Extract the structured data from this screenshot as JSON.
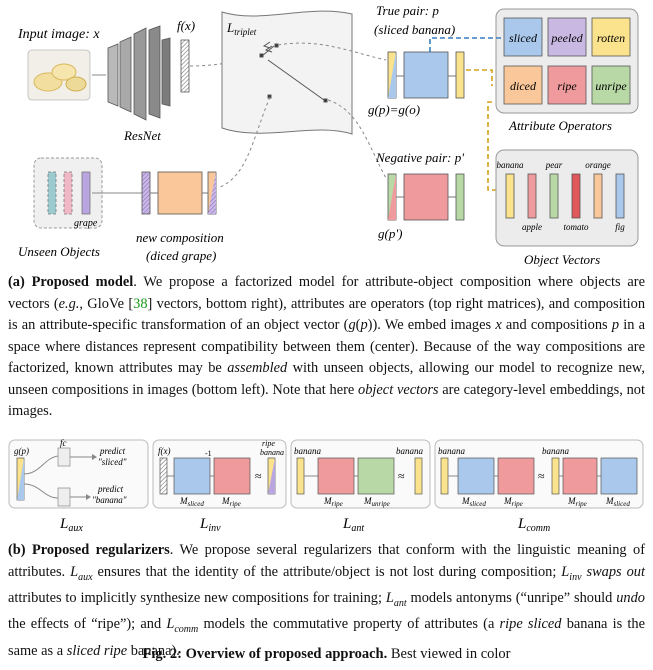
{
  "diagram": {
    "input_label": "Input image: x",
    "resnet_label": "ResNet",
    "fx_label": "f(x)",
    "triplet_label": "L",
    "triplet_sub": "triplet",
    "true_pair_label": "True pair: p",
    "true_pair_sub": "(sliced banana)",
    "gp_label": "g(p)=g(o)",
    "negative_pair_label": "Negative pair: p'",
    "gp_prime_label": "g(p')",
    "unseen_label": "Unseen Objects",
    "grape_label": "grape",
    "new_comp_label": "new composition",
    "new_comp_sub": "(diced grape)",
    "attribute_ops_label": "Attribute Operators",
    "object_vectors_label": "Object Vectors",
    "attributes": [
      {
        "name": "sliced",
        "color": "#a9c8ec"
      },
      {
        "name": "peeled",
        "color": "#c9b8e2"
      },
      {
        "name": "rotten",
        "color": "#fbe38d"
      },
      {
        "name": "diced",
        "color": "#f9c79a"
      },
      {
        "name": "ripe",
        "color": "#ef9a9c"
      },
      {
        "name": "unripe",
        "color": "#b8d9a6"
      }
    ],
    "objects_top": [
      "banana",
      "pear",
      "orange"
    ],
    "objects_bottom": [
      "apple",
      "tomato",
      "fig"
    ]
  },
  "caption_a": {
    "label": "(a) Proposed model",
    "text_html": ". We propose a factorized model for attribute-object composition where objects are vectors (<i>e.g.</i>, GloVe [<span style=\"color:#1a9a1a\">38</span>] vectors, bottom right), attributes are operators (top right matrices), and composition is an attribute-specific transformation of an object vector (<i>g</i>(<i>p</i>)). We embed images <i>x</i> and compositions <i>p</i> in a space where distances represent compatibility between them (center). Because of the way compositions are factorized, known attributes may be <i>assembled</i> with unseen objects, allowing our model to recognize new, unseen compositions in images (bottom left). Note that here <i>object vectors</i> are category-level embeddings, not images."
  },
  "regularizers": {
    "aux": {
      "gp": "g(p)",
      "fc": "fc",
      "predict1": "predict",
      "val1": "\"sliced\"",
      "predict2": "predict",
      "val2": "\"banana\"",
      "loss": "L",
      "sub": "aux"
    },
    "inv": {
      "fx": "f(x)",
      "minus": "-1",
      "top_right": "ripe",
      "top_right2": "banana",
      "m1": "M",
      "m1sub": "sliced",
      "m2": "M",
      "m2sub": "ripe",
      "loss": "L",
      "sub": "inv"
    },
    "ant": {
      "left": "banana",
      "right": "banana",
      "m1": "M",
      "m1sub": "ripe",
      "m2": "M",
      "m2sub": "unripe",
      "loss": "L",
      "sub": "ant"
    },
    "comm": {
      "left": "banana",
      "right": "banana",
      "m1": "M",
      "m1sub": "sliced",
      "m2": "M",
      "m2sub": "ripe",
      "m3": "M",
      "m3sub": "ripe",
      "m4": "M",
      "m4sub": "sliced",
      "loss": "L",
      "sub": "comm"
    }
  },
  "caption_b": {
    "label": "(b) Proposed regularizers",
    "text_html": ". We propose several regularizers that conform with the linguistic meaning of attributes. <i>L</i><sub style=\"font-size:10px\"><i>aux</i></sub> ensures that the identity of the attribute/object is not lost during composition; <i>L</i><sub style=\"font-size:10px\"><i>inv</i></sub> <i>swaps out</i> attributes to implicitly synthesize new compositions for training; <i>L</i><sub style=\"font-size:10px\"><i>ant</i></sub> models antonyms (“unripe” should <i>undo</i> the effects of “ripe”); and <i>L</i><sub style=\"font-size:10px\"><i>comm</i></sub> models the commutative property of attributes (a <i>ripe sliced</i> banana is the same as a <i>sliced ripe</i> banana)."
  },
  "figure_title": {
    "bold": "Fig. 2: Overview of proposed approach.",
    "rest": " Best viewed in color"
  }
}
